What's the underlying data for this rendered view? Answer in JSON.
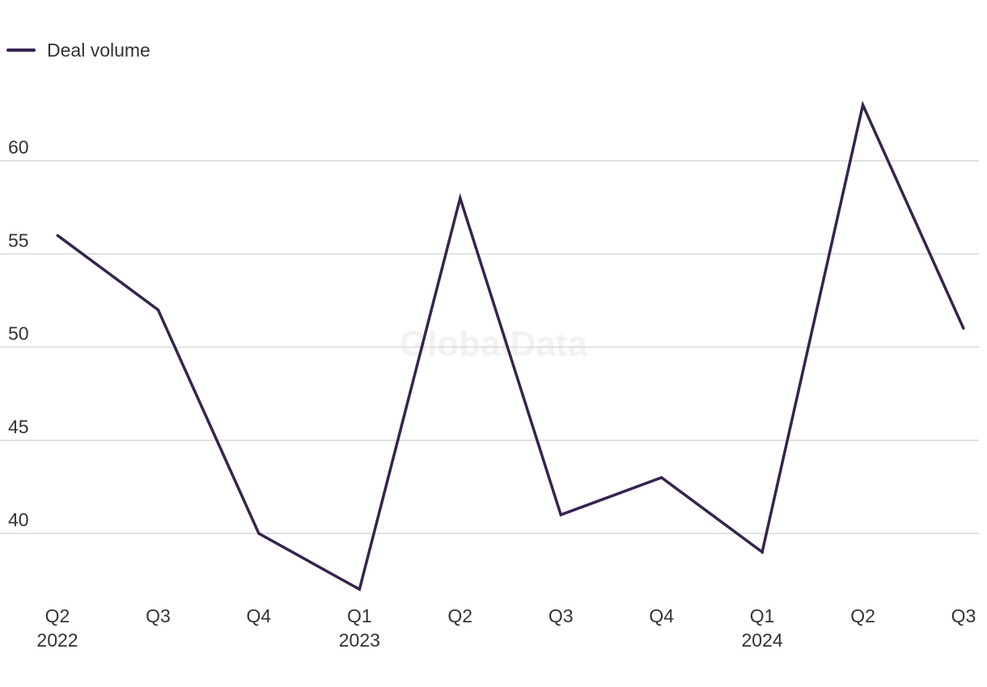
{
  "chart_data": {
    "type": "line",
    "title": "",
    "xlabel": "",
    "ylabel": "",
    "categories": [
      "Q2",
      "Q3",
      "Q4",
      "Q1",
      "Q2",
      "Q3",
      "Q4",
      "Q1",
      "Q2",
      "Q3"
    ],
    "category_years": [
      "2022",
      "",
      "",
      "2023",
      "",
      "",
      "",
      "2024",
      "",
      ""
    ],
    "series": [
      {
        "name": "Deal volume",
        "values": [
          56,
          52,
          40,
          37,
          58,
          41,
          43,
          39,
          63,
          51
        ]
      }
    ],
    "ylim": [
      34,
      66
    ],
    "yticks": [
      40,
      45,
      50,
      55,
      60
    ],
    "grid": true,
    "legend_position": "top-left",
    "watermark": "GlobalData",
    "colors": {
      "series": "#37234f",
      "grid": "#d9d9d9",
      "text": "#333333"
    }
  }
}
